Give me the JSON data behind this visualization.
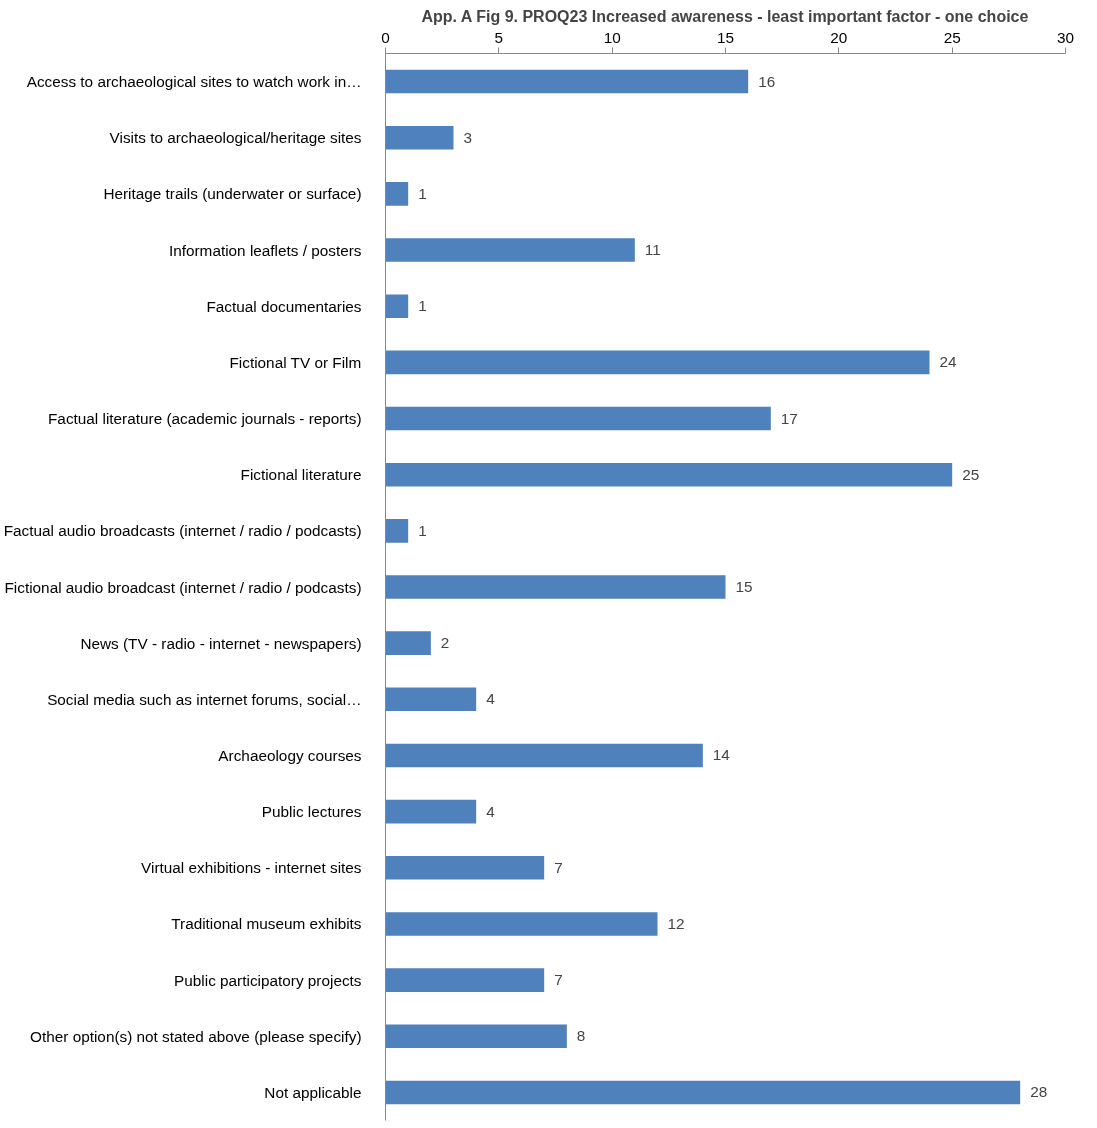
{
  "chart_data": {
    "type": "bar",
    "orientation": "horizontal",
    "title": "App. A Fig 9. PROQ23 Increased awareness - least important factor - one choice",
    "categories": [
      "Access to archaeological sites to watch work in…",
      "Visits to archaeological/heritage sites",
      "Heritage trails (underwater or surface)",
      "Information leaflets / posters",
      "Factual documentaries",
      "Fictional TV or Film",
      "Factual literature (academic journals - reports)",
      "Fictional literature",
      "Factual audio broadcasts (internet / radio / podcasts)",
      "Fictional audio broadcast (internet / radio / podcasts)",
      "News (TV - radio - internet - newspapers)",
      "Social media such as internet forums, social…",
      "Archaeology courses",
      "Public lectures",
      "Virtual exhibitions - internet sites",
      "Traditional museum exhibits",
      "Public participatory projects",
      "Other option(s) not stated above (please specify)",
      "Not applicable"
    ],
    "values": [
      16,
      3,
      1,
      11,
      1,
      24,
      17,
      25,
      1,
      15,
      2,
      4,
      14,
      4,
      7,
      12,
      7,
      8,
      28
    ],
    "color": "#4f81bd",
    "xlim": [
      0,
      30
    ],
    "xticks": [
      0,
      5,
      10,
      15,
      20,
      25,
      30
    ],
    "data_labels": true,
    "grid": false
  }
}
